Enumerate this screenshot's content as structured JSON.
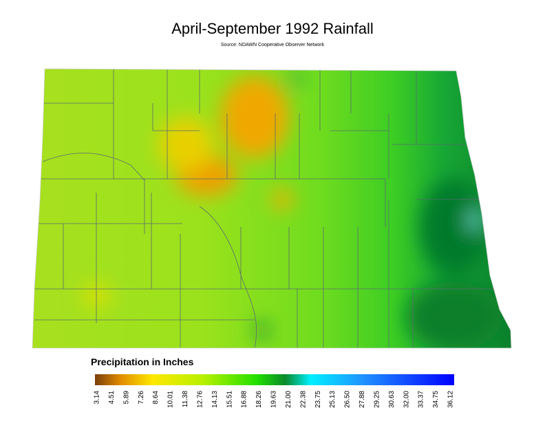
{
  "header": {
    "title": "April-September 1992 Rainfall",
    "subtitle": "Source: NDAWN Cooperative Observer Network"
  },
  "legend": {
    "title": "Precipitation in Inches",
    "ticks": [
      "3.14",
      "4.51",
      "5.89",
      "7.26",
      "8.64",
      "10.01",
      "11.38",
      "12.76",
      "14.13",
      "15.51",
      "16.88",
      "18.26",
      "19.63",
      "21.00",
      "22.38",
      "23.75",
      "25.13",
      "26.50",
      "27.88",
      "29.25",
      "30.63",
      "32.00",
      "33.37",
      "34.75",
      "36.12"
    ]
  }
}
